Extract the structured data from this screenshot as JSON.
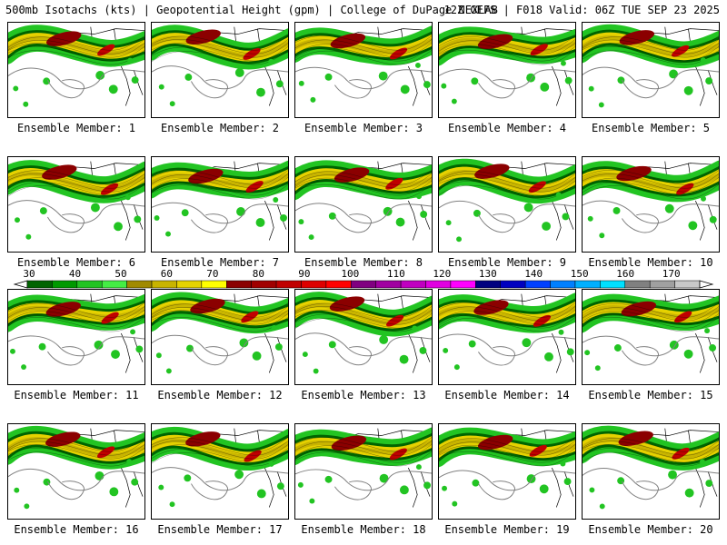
{
  "header": {
    "left": "500mb Isotachs (kts) | Geopotential Height (gpm) | College of DuPage NEXLAB",
    "right": "12Z GEFS | F018 Valid: 06Z TUE SEP 23 2025"
  },
  "caption_prefix": "Ensemble Member: ",
  "members": [
    {
      "id": "1",
      "caption": "Ensemble Member: 1"
    },
    {
      "id": "2",
      "caption": "Ensemble Member: 2"
    },
    {
      "id": "3",
      "caption": "Ensemble Member: 3"
    },
    {
      "id": "4",
      "caption": "Ensemble Member: 4"
    },
    {
      "id": "5",
      "caption": "Ensemble Member: 5"
    },
    {
      "id": "6",
      "caption": "Ensemble Member: 6"
    },
    {
      "id": "7",
      "caption": "Ensemble Member: 7"
    },
    {
      "id": "8",
      "caption": "Ensemble Member: 8"
    },
    {
      "id": "9",
      "caption": "Ensemble Member: 9"
    },
    {
      "id": "10",
      "caption": "Ensemble Member: 10"
    },
    {
      "id": "11",
      "caption": "Ensemble Member: 11"
    },
    {
      "id": "12",
      "caption": "Ensemble Member: 12"
    },
    {
      "id": "13",
      "caption": "Ensemble Member: 13"
    },
    {
      "id": "14",
      "caption": "Ensemble Member: 14"
    },
    {
      "id": "15",
      "caption": "Ensemble Member: 15"
    },
    {
      "id": "16",
      "caption": "Ensemble Member: 16"
    },
    {
      "id": "17",
      "caption": "Ensemble Member: 17"
    },
    {
      "id": "18",
      "caption": "Ensemble Member: 18"
    },
    {
      "id": "19",
      "caption": "Ensemble Member: 19"
    },
    {
      "id": "20",
      "caption": "Ensemble Member: 20"
    }
  ],
  "colorbar": {
    "labels": [
      "30",
      "40",
      "50",
      "60",
      "70",
      "80",
      "90",
      "100",
      "110",
      "120",
      "130",
      "140",
      "150",
      "160",
      "170"
    ],
    "colors": [
      "#006400",
      "#009900",
      "#22c422",
      "#44ee44",
      "#a08a00",
      "#c8b400",
      "#e6d200",
      "#ffff00",
      "#8b0000",
      "#a00000",
      "#c00000",
      "#dd0000",
      "#ff0000",
      "#800080",
      "#a000a0",
      "#c000c0",
      "#e000e0",
      "#ff00ff",
      "#000080",
      "#0000c0",
      "#0040ff",
      "#0080ff",
      "#00b0ff",
      "#00e0ff",
      "#808080",
      "#a0a0a0",
      "#c8c8c8"
    ]
  },
  "map_colors": {
    "jet_light": "#22c422",
    "jet_dark": "#006400",
    "jet_yellow": "#e6d200",
    "jet_core": "#8b0000",
    "height_contour": "#808080",
    "border": "#000000"
  }
}
